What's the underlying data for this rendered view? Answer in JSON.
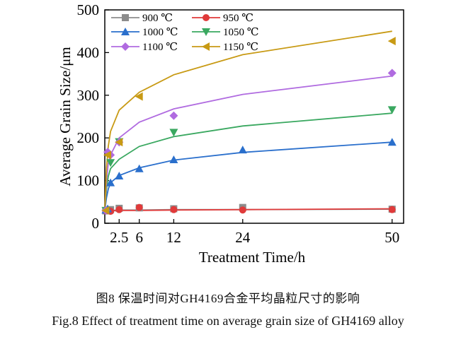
{
  "chart_data": {
    "type": "line",
    "xlabel": "Treatment Time/h",
    "ylabel": "Average Grain Size/μm",
    "xlim": [
      0,
      52
    ],
    "ylim": [
      0,
      500
    ],
    "xticks": [
      2.5,
      6,
      12,
      24,
      50
    ],
    "xtick_labels": [
      "2.5",
      "6",
      "12",
      "24",
      "50"
    ],
    "yticks": [
      0,
      100,
      200,
      300,
      400,
      500
    ],
    "legend_position": "top-left",
    "series": [
      {
        "name": "900 ℃",
        "color": "#8c8c8c",
        "marker": "square",
        "points": {
          "x": [
            0.17,
            0.5,
            1,
            2.5,
            6,
            12,
            24,
            50
          ],
          "y": [
            29,
            30,
            32,
            35,
            36,
            34,
            37,
            33
          ]
        },
        "fit": {
          "x": [
            0,
            0.5,
            1,
            2.5,
            6,
            12,
            24,
            50
          ],
          "y": [
            29,
            30,
            30,
            31,
            31,
            32,
            32,
            33
          ]
        }
      },
      {
        "name": "950 ℃",
        "color": "#e03a3a",
        "marker": "circle",
        "points": {
          "x": [
            0.17,
            0.5,
            1,
            2.5,
            6,
            12,
            24,
            50
          ],
          "y": [
            29,
            31,
            28,
            32,
            37,
            32,
            31,
            32
          ]
        },
        "fit": {
          "x": [
            0,
            0.5,
            1,
            2.5,
            6,
            12,
            24,
            50
          ],
          "y": [
            28,
            29,
            29,
            30,
            30,
            31,
            32,
            34
          ]
        }
      },
      {
        "name": "1000 ℃",
        "color": "#2a6fcc",
        "marker": "triangle-up",
        "points": {
          "x": [
            0.17,
            0.5,
            1,
            2.5,
            6,
            12,
            24,
            50
          ],
          "y": [
            31,
            34,
            95,
            111,
            128,
            149,
            172,
            190
          ]
        },
        "fit": {
          "x": [
            0,
            0.3,
            0.6,
            1,
            2.5,
            6,
            12,
            24,
            50
          ],
          "y": [
            30,
            60,
            80,
            95,
            112,
            130,
            148,
            166,
            190
          ]
        }
      },
      {
        "name": "1050 ℃",
        "color": "#3aa860",
        "marker": "triangle-down",
        "points": {
          "x": [
            0.17,
            1,
            2.5,
            12,
            50
          ],
          "y": [
            30,
            142,
            191,
            213,
            266
          ]
        },
        "fit": {
          "x": [
            0,
            0.3,
            0.6,
            1,
            2.5,
            6,
            12,
            24,
            50
          ],
          "y": [
            30,
            80,
            110,
            128,
            150,
            180,
            203,
            228,
            258
          ]
        }
      },
      {
        "name": "1100 ℃",
        "color": "#b06be0",
        "marker": "diamond",
        "points": {
          "x": [
            0.17,
            0.5,
            1,
            2.5,
            12,
            50
          ],
          "y": [
            30,
            167,
            160,
            190,
            252,
            352
          ]
        },
        "fit": {
          "x": [
            0,
            0.3,
            0.6,
            1,
            2.5,
            6,
            12,
            24,
            50
          ],
          "y": [
            30,
            100,
            140,
            160,
            200,
            237,
            268,
            302,
            345
          ]
        }
      },
      {
        "name": "1150 ℃",
        "color": "#c89a14",
        "marker": "triangle-left",
        "points": {
          "x": [
            0.17,
            0.5,
            2.5,
            6,
            50
          ],
          "y": [
            30,
            160,
            190,
            297,
            427
          ]
        },
        "fit": {
          "x": [
            0,
            0.3,
            0.6,
            1,
            2.5,
            6,
            12,
            24,
            50
          ],
          "y": [
            30,
            130,
            180,
            215,
            265,
            307,
            348,
            395,
            450
          ]
        }
      }
    ]
  },
  "captions": {
    "zh": "图8  保温时间对GH4169合金平均晶粒尺寸的影响",
    "en": "Fig.8  Effect of treatment time on average grain size of GH4169 alloy"
  }
}
